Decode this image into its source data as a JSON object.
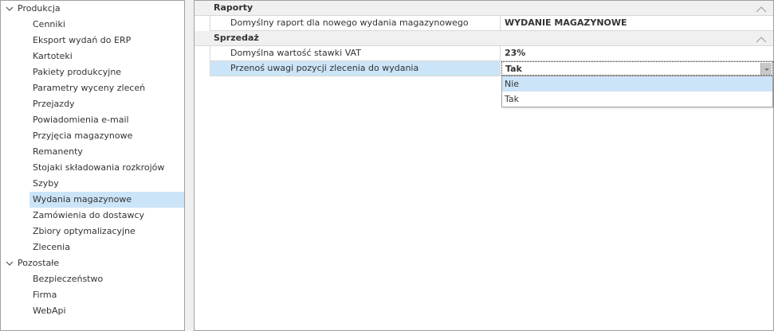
{
  "tree": [
    {
      "label": "Produkcja",
      "level": 0,
      "expanded": true
    },
    {
      "label": "Cenniki",
      "level": 1
    },
    {
      "label": "Eksport wydań do ERP",
      "level": 1
    },
    {
      "label": "Kartoteki",
      "level": 1
    },
    {
      "label": "Pakiety produkcyjne",
      "level": 1
    },
    {
      "label": "Parametry wyceny zleceń",
      "level": 1
    },
    {
      "label": "Przejazdy",
      "level": 1
    },
    {
      "label": "Powiadomienia e-mail",
      "level": 1
    },
    {
      "label": "Przyjęcia magazynowe",
      "level": 1
    },
    {
      "label": "Remanenty",
      "level": 1
    },
    {
      "label": "Stojaki składowania rozkrojów",
      "level": 1
    },
    {
      "label": "Szyby",
      "level": 1
    },
    {
      "label": "Wydania magazynowe",
      "level": 1,
      "selected": true
    },
    {
      "label": "Zamówienia do dostawcy",
      "level": 1
    },
    {
      "label": "Zbiory optymalizacyjne",
      "level": 1
    },
    {
      "label": "Zlecenia",
      "level": 1
    },
    {
      "label": "Pozostałe",
      "level": 0,
      "expanded": true
    },
    {
      "label": "Bezpieczeństwo",
      "level": 1
    },
    {
      "label": "Firma",
      "level": 1
    },
    {
      "label": "WebApi",
      "level": 1
    }
  ],
  "grid": {
    "groups": [
      {
        "title": "Raporty",
        "rows": [
          {
            "name": "Domyślny raport dla nowego wydania magazynowego",
            "value": "WYDANIE MAGAZYNOWE"
          }
        ]
      },
      {
        "title": "Sprzedaż",
        "rows": [
          {
            "name": "Domyślna wartość stawki VAT",
            "value": "23%"
          },
          {
            "name": "Przenoś uwagi pozycji zlecenia do wydania",
            "value": "Tak",
            "selected": true,
            "editing": true
          }
        ]
      }
    ]
  },
  "dropdown": {
    "options": [
      "Nie",
      "Tak"
    ],
    "highlighted": 0
  },
  "colors": {
    "selection": "#cce4f7"
  }
}
